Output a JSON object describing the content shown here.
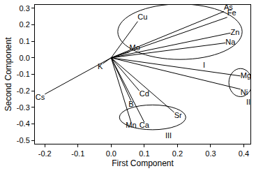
{
  "chart_data": {
    "type": "biplot",
    "xlabel": "First Component",
    "ylabel": "Second Component",
    "labels": [
      "Cu",
      "As",
      "Fe",
      "Zn",
      "Na",
      "Mo",
      "K",
      "Cs",
      "Mg",
      "Ni",
      "Cd",
      "B",
      "Sr",
      "Mn",
      "Ca"
    ],
    "x": [
      0.08,
      0.34,
      0.35,
      0.36,
      0.345,
      0.055,
      -0.025,
      -0.2,
      0.39,
      0.39,
      0.085,
      0.06,
      0.19,
      0.06,
      0.1
    ],
    "y": [
      0.22,
      0.28,
      0.245,
      0.15,
      0.09,
      0.035,
      -0.035,
      -0.22,
      -0.11,
      -0.19,
      -0.2,
      -0.26,
      -0.33,
      -0.39,
      -0.39
    ],
    "groups": [
      {
        "label": "I",
        "members": [
          "As",
          "Fe",
          "Zn",
          "Na",
          "Mo"
        ]
      },
      {
        "label": "II",
        "members": [
          "Mg",
          "Ni"
        ]
      },
      {
        "label": "III",
        "members": [
          "Mn",
          "Ca",
          "Sr"
        ]
      }
    ],
    "color": "#000000",
    "grid": false,
    "xlim": [
      -0.23,
      0.42
    ],
    "ylim": [
      -0.52,
      0.32
    ],
    "xticks": [
      -0.2,
      -0.1,
      {
        "value": 0,
        "label": "0.0"
      },
      0.1,
      0.2,
      0.3,
      0.4
    ],
    "yticks": [
      0.3,
      0.2,
      0.1,
      {
        "value": 0,
        "label": "0.0"
      },
      -0.1,
      -0.2,
      -0.3,
      -0.4,
      -0.5
    ]
  }
}
